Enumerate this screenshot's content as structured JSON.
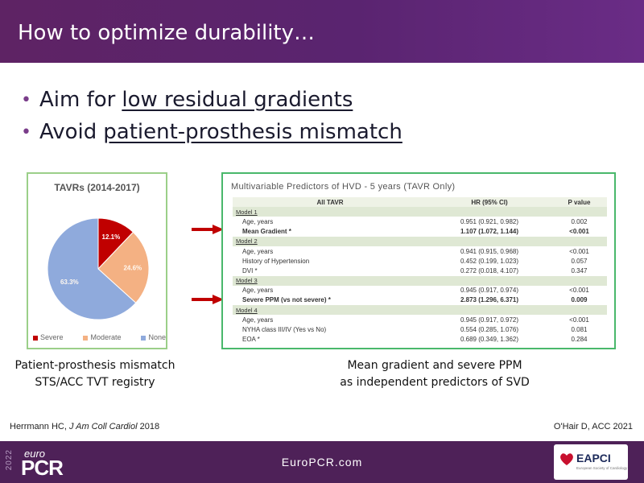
{
  "slide": {
    "title": "How to optimize durability…",
    "bullets": [
      {
        "prefix": "Aim for",
        "emphasis": "low residual gradients"
      },
      {
        "prefix": "Avoid",
        "emphasis": "patient-prosthesis  mismatch"
      }
    ]
  },
  "chart_data": {
    "type": "pie",
    "title": "TAVRs (2014-2017)",
    "categories": [
      "Severe",
      "Moderate",
      "None"
    ],
    "values": [
      12.1,
      24.6,
      63.3
    ],
    "labels": [
      "12.1%",
      "24.6%",
      "63.3%"
    ],
    "colors": [
      "#c00000",
      "#f4b183",
      "#8faadc"
    ],
    "legend": "bottom"
  },
  "captions": {
    "left": [
      "Patient-prosthesis mismatch",
      "STS/ACC TVT registry"
    ],
    "right": [
      "Mean gradient and severe PPM",
      "as independent predictors of SVD"
    ]
  },
  "table": {
    "title": "Multivariable Predictors of HVD - 5 years (TAVR Only)",
    "headers": [
      "All TAVR",
      "HR (95% CI)",
      "P value"
    ],
    "rows": [
      {
        "type": "model",
        "label": "Model 1"
      },
      {
        "label": "Age, years",
        "hr": "0.951 (0.921, 0.982)",
        "p": "0.002"
      },
      {
        "label": "Mean Gradient *",
        "hr": "1.107 (1.072, 1.144)",
        "p": "<0.001",
        "bold": true
      },
      {
        "type": "model",
        "label": "Model 2"
      },
      {
        "label": "Age, years",
        "hr": "0.941  (0.915, 0.968)",
        "p": "<0.001"
      },
      {
        "label": "History of Hypertension",
        "hr": "0.452 (0.199, 1.023)",
        "p": "0.057"
      },
      {
        "label": "DVI *",
        "hr": "0.272 (0.018, 4.107)",
        "p": "0.347"
      },
      {
        "type": "model",
        "label": "Model 3"
      },
      {
        "label": "Age, years",
        "hr": "0.945 (0.917, 0.974)",
        "p": "<0.001"
      },
      {
        "label": "Severe PPM (vs not severe) *",
        "hr": "2.873 (1.296, 6.371)",
        "p": "0.009",
        "bold": true
      },
      {
        "type": "model",
        "label": "Model 4"
      },
      {
        "label": "Age, years",
        "hr": "0.945  (0.917, 0.972)",
        "p": "<0.001"
      },
      {
        "label": "NYHA class III/IV  (Yes  vs  No)",
        "hr": "0.554  (0.285,  1.076)",
        "p": "0.081"
      },
      {
        "label": "EOA *",
        "hr": "0.689  (0.349,  1.362)",
        "p": "0.284"
      }
    ]
  },
  "references": {
    "left_author": "Herrmann HC,",
    "left_journal": "J Am Coll Cardiol",
    "left_year": "2018",
    "right": "O'Hair D, ACC 2021"
  },
  "footer": {
    "year": "2022",
    "logo_top": "euro",
    "logo_main": "PCR",
    "site": "EuroPCR.com",
    "badge_name": "EAPCI",
    "badge_sub": "European Society of Cardiology"
  },
  "accent_colors": {
    "header": "#5e2364",
    "footer": "#4e2158",
    "arrow": "#c00000"
  }
}
